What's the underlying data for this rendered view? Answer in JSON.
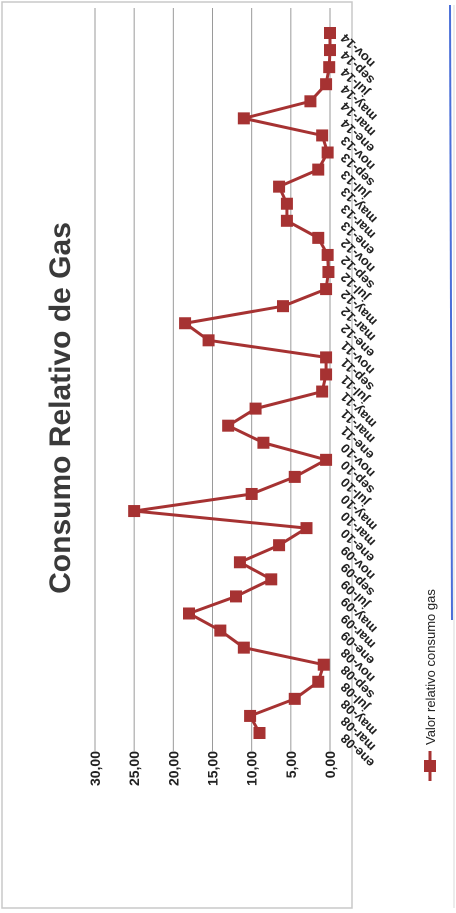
{
  "chart_data": {
    "type": "line",
    "title": "Consumo Relativo de Gas",
    "xlabel": "",
    "ylabel": "",
    "ylim": [
      0,
      30
    ],
    "yticks": [
      "0,00",
      "5,00",
      "10,00",
      "15,00",
      "20,00",
      "25,00",
      "30,00"
    ],
    "grid": true,
    "legend_position": "bottom",
    "categories": [
      "ene-08",
      "mar-08",
      "may-08",
      "jul-08",
      "sep-08",
      "nov-08",
      "ene-09",
      "mar-09",
      "may-09",
      "jul-09",
      "sep-09",
      "nov-09",
      "ene-10",
      "mar-10",
      "may-10",
      "jul-10",
      "sep-10",
      "nov-10",
      "ene-11",
      "mar-11",
      "may-11",
      "jul-11",
      "sep-11",
      "nov-11",
      "ene-12",
      "mar-12",
      "may-12",
      "jul-12",
      "sep-12",
      "nov-12",
      "ene-13",
      "mar-13",
      "may-13",
      "jul-13",
      "sep-13",
      "nov-13",
      "ene-14",
      "mar-14",
      "may-14",
      "jul-14",
      "sep-14",
      "nov-14"
    ],
    "series": [
      {
        "name": "Valor relativo consumo gas",
        "color": "#a63232",
        "values": [
          9.0,
          10.2,
          4.5,
          1.5,
          0.8,
          11.0,
          14.0,
          18.0,
          12.0,
          7.5,
          11.5,
          6.5,
          3.0,
          25.0,
          10.0,
          4.5,
          0.5,
          8.5,
          13.0,
          9.5,
          1.0,
          0.5,
          0.5,
          15.5,
          18.5,
          6.0,
          0.5,
          0.2,
          0.3,
          1.5,
          5.5,
          5.5,
          6.5,
          1.5,
          0.3,
          1.0,
          11.0,
          2.5,
          0.5,
          0.1,
          0.0,
          0.0
        ]
      }
    ]
  },
  "decor": {
    "right_line_color": "#4a6fd8"
  }
}
